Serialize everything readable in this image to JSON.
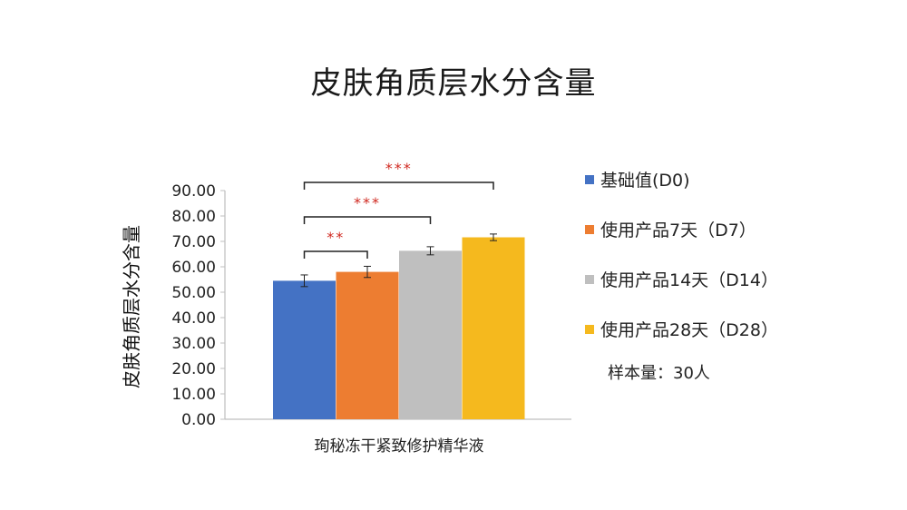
{
  "chart_data": {
    "type": "bar",
    "title": "皮肤角质层水分含量",
    "ylabel": "皮肤角质层水分含量",
    "xlabel": "",
    "categories": [
      "珣秘冻干紧致修护精华液"
    ],
    "ylim": [
      0,
      90
    ],
    "ytick_step": 10,
    "ytick_labels": [
      "0.00",
      "10.00",
      "20.00",
      "30.00",
      "40.00",
      "50.00",
      "60.00",
      "70.00",
      "80.00",
      "90.00"
    ],
    "grid": false,
    "legend_position": "right",
    "series": [
      {
        "name": "基础值(D0)",
        "values": [
          54.5
        ],
        "error": [
          2.3
        ],
        "color": "#4472c4"
      },
      {
        "name": "使用产品7天（D7）",
        "values": [
          58.0
        ],
        "error": [
          2.2
        ],
        "color": "#ed7d31"
      },
      {
        "name": "使用产品14天（D14）",
        "values": [
          66.3
        ],
        "error": [
          1.6
        ],
        "color": "#bfbfbf"
      },
      {
        "name": "使用产品28天（D28）",
        "values": [
          71.6
        ],
        "error": [
          1.3
        ],
        "color": "#f5b91e"
      }
    ],
    "significance": [
      {
        "from": 0,
        "to": 1,
        "label": "**"
      },
      {
        "from": 0,
        "to": 2,
        "label": "***"
      },
      {
        "from": 0,
        "to": 3,
        "label": "***"
      }
    ],
    "note": "样本量：30人"
  }
}
